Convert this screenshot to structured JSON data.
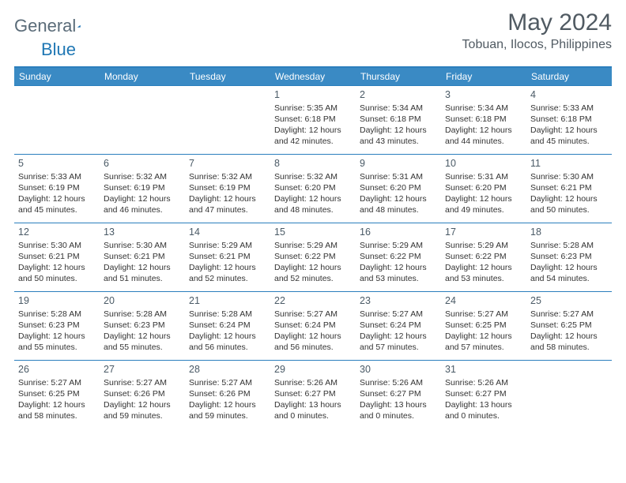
{
  "logo": {
    "word1": "General",
    "word2": "Blue"
  },
  "title": "May 2024",
  "location": "Tobuan, Ilocos, Philippines",
  "dayNames": [
    "Sunday",
    "Monday",
    "Tuesday",
    "Wednesday",
    "Thursday",
    "Friday",
    "Saturday"
  ],
  "colors": {
    "headerBg": "#3a8ac4",
    "border": "#2b7fbd",
    "text": "#333333",
    "titleText": "#505a62"
  },
  "weeks": [
    [
      null,
      null,
      null,
      {
        "n": "1",
        "sr": "5:35 AM",
        "ss": "6:18 PM",
        "dl": "12 hours and 42 minutes."
      },
      {
        "n": "2",
        "sr": "5:34 AM",
        "ss": "6:18 PM",
        "dl": "12 hours and 43 minutes."
      },
      {
        "n": "3",
        "sr": "5:34 AM",
        "ss": "6:18 PM",
        "dl": "12 hours and 44 minutes."
      },
      {
        "n": "4",
        "sr": "5:33 AM",
        "ss": "6:18 PM",
        "dl": "12 hours and 45 minutes."
      }
    ],
    [
      {
        "n": "5",
        "sr": "5:33 AM",
        "ss": "6:19 PM",
        "dl": "12 hours and 45 minutes."
      },
      {
        "n": "6",
        "sr": "5:32 AM",
        "ss": "6:19 PM",
        "dl": "12 hours and 46 minutes."
      },
      {
        "n": "7",
        "sr": "5:32 AM",
        "ss": "6:19 PM",
        "dl": "12 hours and 47 minutes."
      },
      {
        "n": "8",
        "sr": "5:32 AM",
        "ss": "6:20 PM",
        "dl": "12 hours and 48 minutes."
      },
      {
        "n": "9",
        "sr": "5:31 AM",
        "ss": "6:20 PM",
        "dl": "12 hours and 48 minutes."
      },
      {
        "n": "10",
        "sr": "5:31 AM",
        "ss": "6:20 PM",
        "dl": "12 hours and 49 minutes."
      },
      {
        "n": "11",
        "sr": "5:30 AM",
        "ss": "6:21 PM",
        "dl": "12 hours and 50 minutes."
      }
    ],
    [
      {
        "n": "12",
        "sr": "5:30 AM",
        "ss": "6:21 PM",
        "dl": "12 hours and 50 minutes."
      },
      {
        "n": "13",
        "sr": "5:30 AM",
        "ss": "6:21 PM",
        "dl": "12 hours and 51 minutes."
      },
      {
        "n": "14",
        "sr": "5:29 AM",
        "ss": "6:21 PM",
        "dl": "12 hours and 52 minutes."
      },
      {
        "n": "15",
        "sr": "5:29 AM",
        "ss": "6:22 PM",
        "dl": "12 hours and 52 minutes."
      },
      {
        "n": "16",
        "sr": "5:29 AM",
        "ss": "6:22 PM",
        "dl": "12 hours and 53 minutes."
      },
      {
        "n": "17",
        "sr": "5:29 AM",
        "ss": "6:22 PM",
        "dl": "12 hours and 53 minutes."
      },
      {
        "n": "18",
        "sr": "5:28 AM",
        "ss": "6:23 PM",
        "dl": "12 hours and 54 minutes."
      }
    ],
    [
      {
        "n": "19",
        "sr": "5:28 AM",
        "ss": "6:23 PM",
        "dl": "12 hours and 55 minutes."
      },
      {
        "n": "20",
        "sr": "5:28 AM",
        "ss": "6:23 PM",
        "dl": "12 hours and 55 minutes."
      },
      {
        "n": "21",
        "sr": "5:28 AM",
        "ss": "6:24 PM",
        "dl": "12 hours and 56 minutes."
      },
      {
        "n": "22",
        "sr": "5:27 AM",
        "ss": "6:24 PM",
        "dl": "12 hours and 56 minutes."
      },
      {
        "n": "23",
        "sr": "5:27 AM",
        "ss": "6:24 PM",
        "dl": "12 hours and 57 minutes."
      },
      {
        "n": "24",
        "sr": "5:27 AM",
        "ss": "6:25 PM",
        "dl": "12 hours and 57 minutes."
      },
      {
        "n": "25",
        "sr": "5:27 AM",
        "ss": "6:25 PM",
        "dl": "12 hours and 58 minutes."
      }
    ],
    [
      {
        "n": "26",
        "sr": "5:27 AM",
        "ss": "6:25 PM",
        "dl": "12 hours and 58 minutes."
      },
      {
        "n": "27",
        "sr": "5:27 AM",
        "ss": "6:26 PM",
        "dl": "12 hours and 59 minutes."
      },
      {
        "n": "28",
        "sr": "5:27 AM",
        "ss": "6:26 PM",
        "dl": "12 hours and 59 minutes."
      },
      {
        "n": "29",
        "sr": "5:26 AM",
        "ss": "6:27 PM",
        "dl": "13 hours and 0 minutes."
      },
      {
        "n": "30",
        "sr": "5:26 AM",
        "ss": "6:27 PM",
        "dl": "13 hours and 0 minutes."
      },
      {
        "n": "31",
        "sr": "5:26 AM",
        "ss": "6:27 PM",
        "dl": "13 hours and 0 minutes."
      },
      null
    ]
  ],
  "labels": {
    "sunrise": "Sunrise: ",
    "sunset": "Sunset: ",
    "daylight": "Daylight: "
  }
}
